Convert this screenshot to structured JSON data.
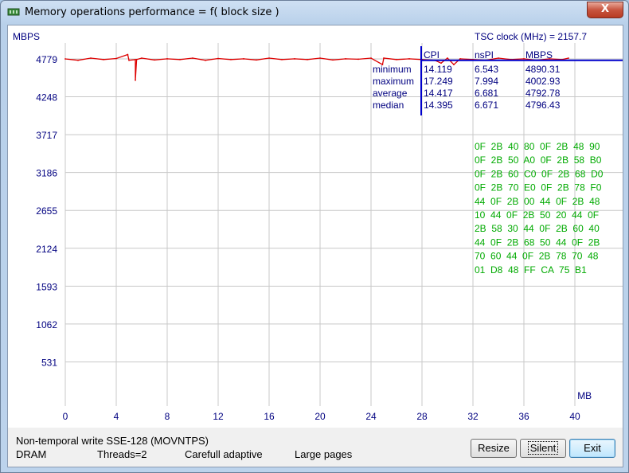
{
  "window": {
    "title": "Memory operations performance = f( block size )",
    "close_label": "X"
  },
  "chart_data": {
    "type": "line",
    "ylabel": "MBPS",
    "xlabel": "MB",
    "yticks": [
      4779,
      4248,
      3717,
      3186,
      2655,
      2124,
      1593,
      1062,
      531
    ],
    "xticks": [
      0,
      4,
      8,
      12,
      16,
      20,
      24,
      28,
      32,
      36,
      40
    ],
    "xlim": [
      0,
      44
    ],
    "ylim": [
      0,
      4779
    ],
    "grid": true,
    "series": [
      {
        "color": "#dd0000",
        "x": [
          0,
          1,
          2,
          3,
          4,
          4.9,
          5,
          5.5,
          5.5,
          5.6,
          6,
          7,
          8,
          9,
          10,
          11,
          12,
          13,
          14,
          15,
          16,
          17,
          18,
          19,
          20,
          21,
          22,
          23,
          24,
          24.9,
          25,
          26,
          27,
          28,
          29,
          29.5,
          30,
          30.5,
          31,
          32,
          33,
          34,
          35,
          36,
          37,
          38,
          39,
          39.5
        ],
        "y": [
          4779,
          4760,
          4790,
          4770,
          4785,
          4840,
          4760,
          4770,
          4480,
          4770,
          4790,
          4765,
          4780,
          4770,
          4790,
          4760,
          4785,
          4770,
          4780,
          4765,
          4790,
          4770,
          4780,
          4770,
          4790,
          4765,
          4780,
          4775,
          4790,
          4700,
          4790,
          4770,
          4780,
          4770,
          4760,
          4720,
          4790,
          4700,
          4780,
          4770,
          4760,
          4790,
          4770,
          4780,
          4760,
          4780,
          4770,
          4790
        ]
      },
      {
        "color": "#0000cc",
        "x": [
          28,
          44
        ],
        "y": [
          4760,
          4760
        ]
      }
    ]
  },
  "stats": {
    "tsc": "TSC clock (MHz)  = 2157.7",
    "headers": [
      "CPI",
      "nsPI",
      "MBPS"
    ],
    "rows": [
      {
        "label": "minimum",
        "cpi": "14.119",
        "nspi": "6.543",
        "mbps": "4890.31"
      },
      {
        "label": "maximum",
        "cpi": "17.249",
        "nspi": "7.994",
        "mbps": "4002.93"
      },
      {
        "label": "average",
        "cpi": "14.417",
        "nspi": "6.681",
        "mbps": "4792.78"
      },
      {
        "label": "median",
        "cpi": "14.395",
        "nspi": "6.671",
        "mbps": "4796.43"
      }
    ]
  },
  "hex_dump": [
    "0F  2B  40  80  0F  2B  48  90",
    "0F  2B  50  A0  0F  2B  58  B0",
    "0F  2B  60  C0  0F  2B  68  D0",
    "0F  2B  70  E0  0F  2B  78  F0",
    "44  0F  2B  00  44  0F  2B  48",
    "10  44  0F  2B  50  20  44  0F",
    "2B  58  30  44  0F  2B  60  40",
    "44  0F  2B  68  50  44  0F  2B",
    "70  60  44  0F  2B  78  70  48",
    "01  D8  48  FF  CA  75  B1"
  ],
  "status": {
    "method": "Non-temporal write SSE-128 (MOVNTPS)",
    "target": "DRAM",
    "threads": "Threads=2",
    "mode": "Carefull adaptive",
    "pages": "Large pages"
  },
  "buttons": {
    "resize": "Resize",
    "silent": "Silent",
    "exit": "Exit"
  },
  "colors": {
    "grid": "#c8c8c8",
    "axis_text": "#000080",
    "stats_text": "#000080",
    "hex_text": "#00aa00",
    "red_series": "#dd0000",
    "blue_series": "#0000cc"
  }
}
